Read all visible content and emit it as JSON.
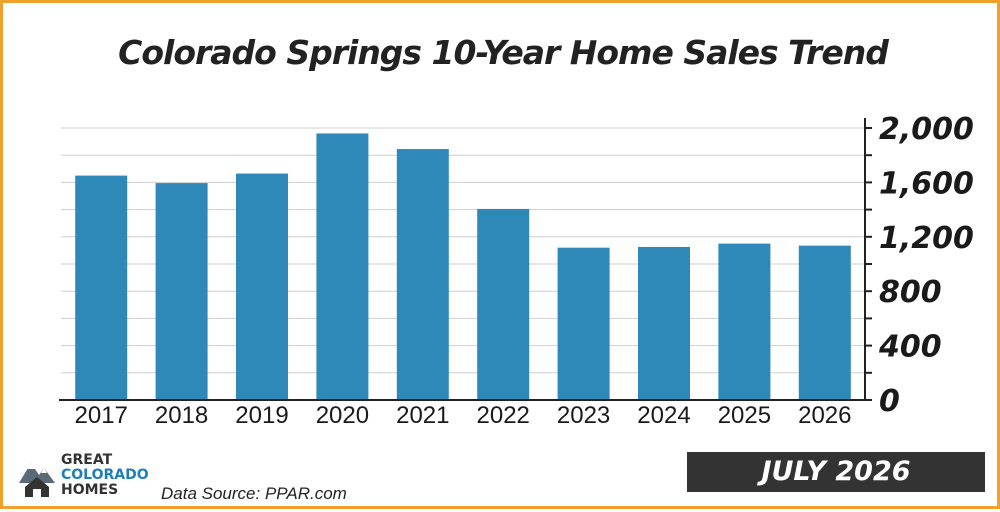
{
  "header": {
    "title": "Colorado Springs 10-Year Home Sales Trend"
  },
  "footer": {
    "source": "Data Source: PPAR.com",
    "date_badge": "JULY 2026",
    "logo_lines": [
      "GREAT",
      "COLORADO",
      "HOMES"
    ]
  },
  "colors": {
    "bar": "#2e88b8",
    "border": "#f0a02c",
    "badge": "#333333"
  },
  "chart_data": {
    "type": "bar",
    "title": "Colorado Springs 10-Year Home Sales Trend",
    "categories": [
      "2017",
      "2018",
      "2019",
      "2020",
      "2021",
      "2022",
      "2023",
      "2024",
      "2025",
      "2026"
    ],
    "values": [
      1650,
      1595,
      1665,
      1960,
      1845,
      1405,
      1120,
      1125,
      1150,
      1135
    ],
    "ylim": [
      0,
      2000
    ],
    "yticks": [
      0,
      400,
      800,
      1200,
      1600,
      2000
    ],
    "ytick_labels": [
      "0",
      "400",
      "800",
      "1,200",
      "1,600",
      "2,000"
    ],
    "yaxis_position": "right",
    "grid": true,
    "xlabel": "",
    "ylabel": ""
  }
}
